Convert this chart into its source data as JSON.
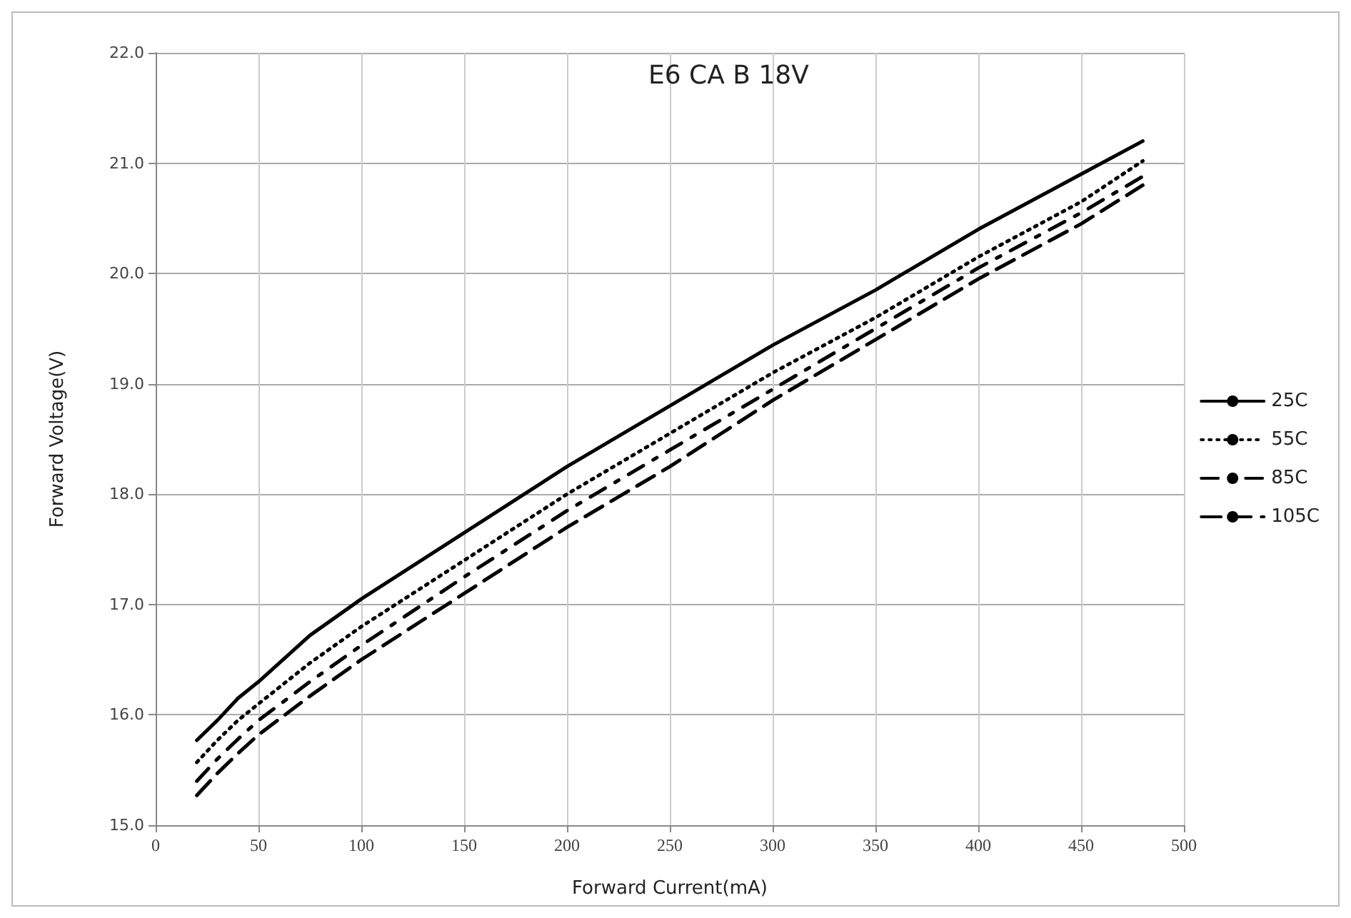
{
  "chart_data": {
    "type": "line",
    "title": "E6 CA B 18V",
    "xlabel": "Forward Current(mA)",
    "ylabel": "Forward Voltage(V)",
    "x": [
      20,
      30,
      40,
      50,
      75,
      100,
      150,
      200,
      250,
      300,
      350,
      400,
      450,
      480
    ],
    "series": [
      {
        "name": "25C",
        "color": "#000000",
        "line_style": "solid",
        "values": [
          15.77,
          15.95,
          16.15,
          16.3,
          16.72,
          17.05,
          17.65,
          18.25,
          18.8,
          19.35,
          19.85,
          20.4,
          20.9,
          21.2
        ]
      },
      {
        "name": "55C",
        "color": "#000000",
        "line_style": "dotted",
        "values": [
          15.57,
          15.77,
          15.95,
          16.1,
          16.47,
          16.8,
          17.4,
          18.0,
          18.55,
          19.1,
          19.6,
          20.15,
          20.65,
          21.02
        ]
      },
      {
        "name": "85C",
        "color": "#000000",
        "line_style": "dashdot",
        "values": [
          15.4,
          15.6,
          15.78,
          15.95,
          16.3,
          16.63,
          17.25,
          17.85,
          18.4,
          18.95,
          19.5,
          20.05,
          20.55,
          20.88
        ]
      },
      {
        "name": "105C",
        "color": "#000000",
        "line_style": "dashed",
        "values": [
          15.27,
          15.47,
          15.65,
          15.82,
          16.17,
          16.5,
          17.1,
          17.7,
          18.25,
          18.85,
          19.4,
          19.95,
          20.45,
          20.8
        ]
      }
    ],
    "xlim": [
      0,
      500
    ],
    "xticks": [
      0,
      50,
      100,
      150,
      200,
      250,
      300,
      350,
      400,
      450,
      500
    ],
    "ylim": [
      15,
      22
    ],
    "yticks": [
      {
        "value": 15,
        "label": "15.0"
      },
      {
        "value": 16,
        "label": "16.0"
      },
      {
        "value": 17,
        "label": "17.0"
      },
      {
        "value": 18,
        "label": "18.0"
      },
      {
        "value": 19,
        "label": "19.0"
      },
      {
        "value": 20,
        "label": "20.0"
      },
      {
        "value": 21,
        "label": "21.0"
      },
      {
        "value": 22,
        "label": "22.0"
      }
    ],
    "grid": true,
    "legend": "right",
    "marker": "none"
  }
}
